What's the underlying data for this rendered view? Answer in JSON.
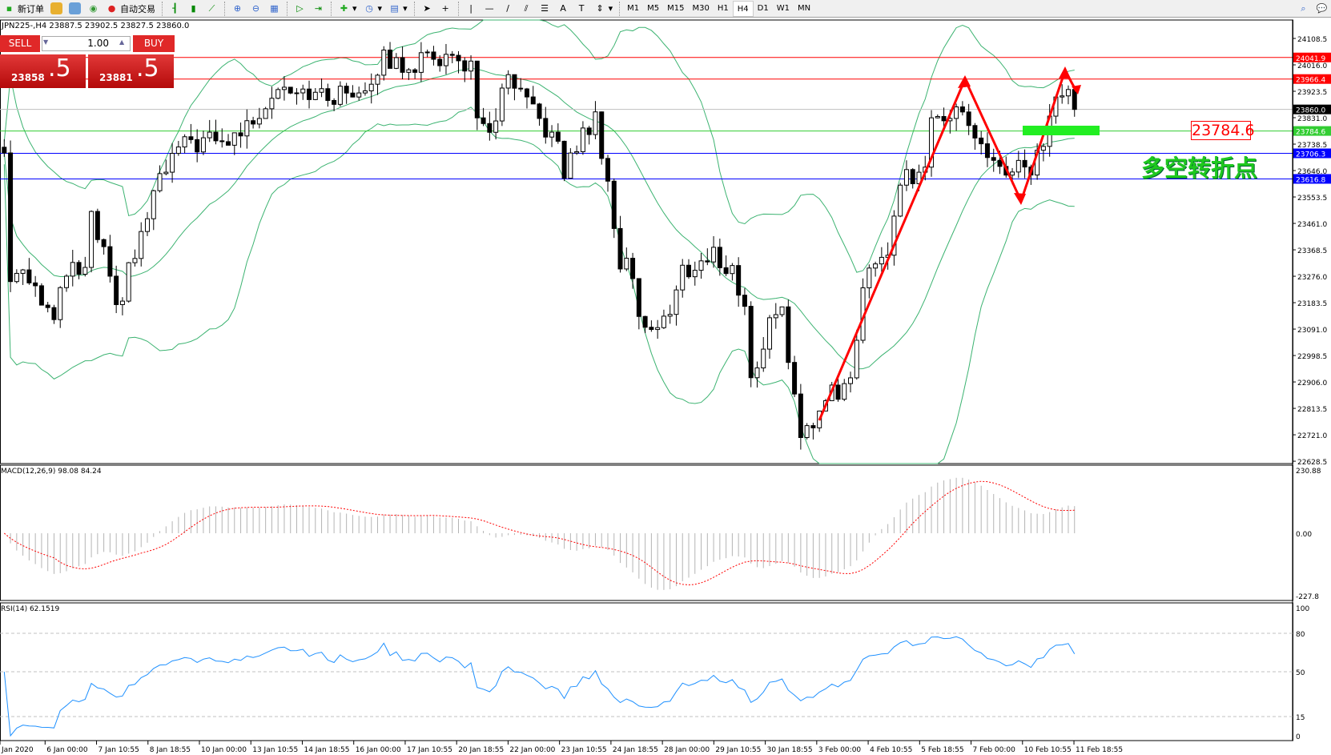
{
  "toolbar": {
    "new_order": "新订单",
    "auto_trading": "自动交易",
    "icons": [
      "new-order-icon",
      "market-watch-icon",
      "navigator-icon",
      "signals-icon",
      "auto-trading-icon",
      "bar-chart-icon",
      "candlestick-icon",
      "line-chart-icon",
      "zoom-in-icon",
      "zoom-out-icon",
      "tile-windows-icon",
      "autoscroll-icon",
      "chart-shift-icon",
      "indicators-icon",
      "periods-icon",
      "templates-icon",
      "cursor-icon",
      "crosshair-icon",
      "vertical-line-icon",
      "horizontal-line-icon",
      "trendline-icon",
      "equidistant-channel-icon",
      "fibonacci-icon",
      "text-icon",
      "text-label-icon",
      "arrows-icon"
    ],
    "timeframes": [
      "M1",
      "M5",
      "M15",
      "M30",
      "H1",
      "H4",
      "D1",
      "W1",
      "MN"
    ],
    "active_timeframe": "H4"
  },
  "chart": {
    "symbol_info": "JPN225-,H4  23887.5 23902.5 23827.5 23860.0",
    "one_click": {
      "sell": "SELL",
      "buy": "BUY",
      "lots": "1.00",
      "bid_main": "23858",
      "bid_pip": ".5",
      "ask_main": "23881",
      "ask_pip": ".5"
    },
    "points": [
      [
        0,
        23707
      ],
      [
        1,
        23261
      ],
      [
        3,
        23321
      ],
      [
        6,
        23202
      ],
      [
        8,
        23113
      ],
      [
        10,
        23291
      ],
      [
        13,
        23291
      ],
      [
        14,
        23470
      ],
      [
        16,
        23351
      ],
      [
        18,
        23143
      ],
      [
        20,
        23291
      ],
      [
        22,
        23410
      ],
      [
        24,
        23559
      ],
      [
        26,
        23648
      ],
      [
        28,
        23722
      ],
      [
        32,
        23752
      ],
      [
        35,
        23737
      ],
      [
        39,
        23797
      ],
      [
        42,
        23886
      ],
      [
        44,
        23945
      ],
      [
        47,
        23945
      ],
      [
        51,
        23900
      ],
      [
        55,
        23915
      ],
      [
        58,
        23945
      ],
      [
        61,
        24034
      ],
      [
        63,
        24019
      ],
      [
        66,
        24019
      ],
      [
        69,
        24049
      ],
      [
        72,
        24034
      ],
      [
        75,
        24019
      ],
      [
        76,
        23797
      ],
      [
        78,
        23782
      ],
      [
        81,
        23960
      ],
      [
        84,
        23871
      ],
      [
        87,
        23797
      ],
      [
        89,
        23722
      ],
      [
        90,
        23633
      ],
      [
        92,
        23737
      ],
      [
        95,
        23826
      ],
      [
        97,
        23618
      ],
      [
        99,
        23291
      ],
      [
        100,
        23351
      ],
      [
        102,
        23143
      ],
      [
        104,
        23098
      ],
      [
        107,
        23143
      ],
      [
        109,
        23291
      ],
      [
        112,
        23321
      ],
      [
        114,
        23351
      ],
      [
        117,
        23291
      ],
      [
        119,
        23172
      ],
      [
        120,
        22934
      ],
      [
        121,
        22934
      ],
      [
        123,
        23143
      ],
      [
        125,
        23172
      ],
      [
        127,
        22845
      ],
      [
        128,
        22682
      ],
      [
        130,
        22756
      ],
      [
        132,
        22875
      ],
      [
        135,
        22875
      ],
      [
        137,
        23024
      ],
      [
        138,
        23232
      ],
      [
        140,
        23351
      ],
      [
        142,
        23351
      ],
      [
        144,
        23618
      ],
      [
        146,
        23633
      ],
      [
        148,
        23678
      ],
      [
        149,
        23797
      ],
      [
        151,
        23826
      ],
      [
        153,
        23900
      ],
      [
        155,
        23797
      ],
      [
        157,
        23722
      ],
      [
        160,
        23663
      ],
      [
        161,
        23618
      ],
      [
        163,
        23648
      ],
      [
        165,
        23618
      ],
      [
        167,
        23752
      ],
      [
        169,
        23900
      ],
      [
        171,
        23930
      ],
      [
        172,
        23860
      ]
    ],
    "price_axis": [
      "24108.5",
      "24016.0",
      "23923.5",
      "23831.0",
      "23738.5",
      "23646.0",
      "23553.5",
      "23461.0",
      "23368.5",
      "23276.0",
      "23183.5",
      "23091.0",
      "22998.5",
      "22906.0",
      "22813.5",
      "22721.0",
      "22628.5"
    ],
    "levels": [
      {
        "price": 24041.9,
        "label": "24041.9",
        "color": "#ff0000"
      },
      {
        "price": 23966.4,
        "label": "23966.4",
        "color": "#ff0000"
      },
      {
        "price": 23860.0,
        "label": "23860.0",
        "color": "#000000",
        "line": "#c0c0c0"
      },
      {
        "price": 23784.6,
        "label": "23784.6",
        "color": "#32cd32"
      },
      {
        "price": 23706.3,
        "label": "23706.3",
        "color": "#0000ff"
      },
      {
        "price": 23616.8,
        "label": "23616.8",
        "color": "#0000ff"
      }
    ],
    "annotation_price": "23784.6",
    "annotation_text": "多空转折点"
  },
  "macd": {
    "label": "MACD(12,26,9) 98.08 84.24",
    "axis": [
      "230.88",
      "0.00",
      "-227.8"
    ],
    "max": 230.88,
    "min": -227.8
  },
  "rsi": {
    "label": "RSI(14) 62.1519",
    "axis": [
      "100",
      "80",
      "50",
      "15",
      "0"
    ],
    "levels": [
      80,
      50,
      15
    ],
    "color": "#1e90ff"
  },
  "time_axis": [
    "Jan 2020",
    "6 Jan 00:00",
    "7 Jan 10:55",
    "8 Jan 18:55",
    "10 Jan 00:00",
    "13 Jan 10:55",
    "14 Jan 18:55",
    "16 Jan 00:00",
    "17 Jan 10:55",
    "20 Jan 18:55",
    "22 Jan 00:00",
    "23 Jan 10:55",
    "24 Jan 18:55",
    "28 Jan 00:00",
    "29 Jan 10:55",
    "30 Jan 18:55",
    "3 Feb 00:00",
    "4 Feb 10:55",
    "5 Feb 18:55",
    "7 Feb 00:00",
    "10 Feb 10:55",
    "11 Feb 18:55"
  ]
}
